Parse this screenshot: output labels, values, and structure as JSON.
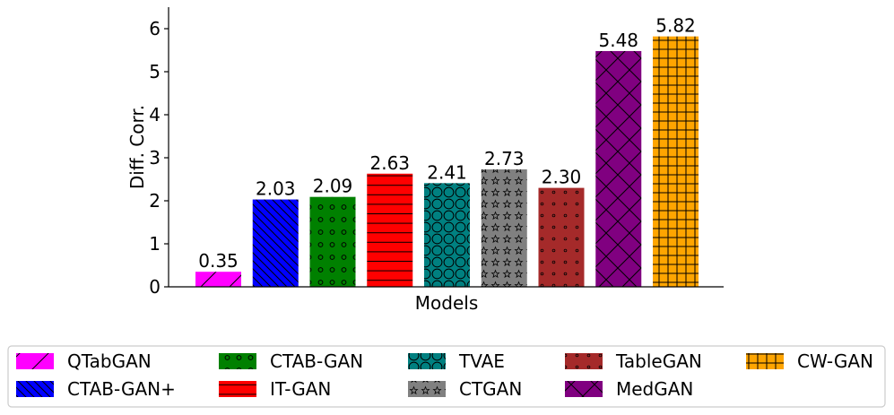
{
  "chart_data": {
    "type": "bar",
    "title": "",
    "xlabel": "Models",
    "ylabel": "Diff. Corr.",
    "ylim": [
      0,
      6.5
    ],
    "yticks": [
      0,
      1,
      2,
      3,
      4,
      5,
      6
    ],
    "grid": false,
    "legend_position": "bottom",
    "categories": [
      "QTabGAN",
      "CTAB-GAN+",
      "CTAB-GAN",
      "IT-GAN",
      "TVAE",
      "CTGAN",
      "TableGAN",
      "MedGAN",
      "CW-GAN"
    ],
    "values": [
      0.35,
      2.03,
      2.09,
      2.63,
      2.41,
      2.73,
      2.3,
      5.48,
      5.82
    ],
    "value_labels": [
      "0.35",
      "2.03",
      "2.09",
      "2.63",
      "2.41",
      "2.73",
      "2.30",
      "5.48",
      "5.82"
    ],
    "colors": [
      "#ff00ff",
      "#0000ff",
      "#008000",
      "#ff0000",
      "#008080",
      "#808080",
      "#a52a2a",
      "#800080",
      "#ffa500"
    ],
    "hatches": [
      "diag",
      "backdiag",
      "circles",
      "hlines",
      "bigcircles",
      "stars",
      "dots",
      "cross",
      "grid"
    ]
  }
}
